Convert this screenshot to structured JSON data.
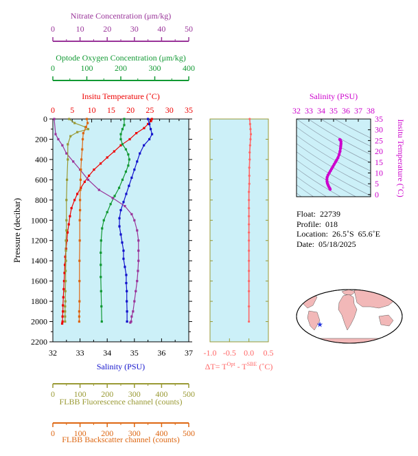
{
  "colors": {
    "nitrate": "#993399",
    "oxygen": "#119933",
    "temperature": "#ee0000",
    "salinity": "#1111cc",
    "fluorescence": "#999933",
    "backscatter": "#dd6611",
    "delta_t": "#ff6666",
    "ts_axis": "#cc00cc",
    "plot_bg": "#ccf0f8",
    "land": "#f2b8b8",
    "ocean": "#ffffff"
  },
  "float_info": {
    "float": "Float:  22739",
    "profile": "Profile:  018",
    "location": "Location:  26.5˚S  65.6˚E",
    "date": "Date:  05/18/2025"
  },
  "chart_data": [
    {
      "type": "line",
      "panel": "profiles",
      "ylabel": "Pressure (decibar)",
      "ylim": [
        2200,
        0
      ],
      "yticks": [
        0,
        200,
        400,
        600,
        800,
        1000,
        1200,
        1400,
        1600,
        1800,
        2000,
        2200
      ],
      "axes": {
        "nitrate": {
          "title": "Nitrate Concentration (μm/kg)",
          "range": [
            0,
            50
          ],
          "ticks": [
            0,
            10,
            20,
            30,
            40,
            50
          ]
        },
        "oxygen": {
          "title": "Optode Oxygen Concentration (μm/kg)",
          "range": [
            0,
            400
          ],
          "ticks": [
            0,
            100,
            200,
            300,
            400
          ]
        },
        "temperature": {
          "title": "Insitu Temperature (˚C)",
          "range": [
            0,
            35
          ],
          "ticks": [
            0,
            5,
            10,
            15,
            20,
            25,
            30,
            35
          ]
        },
        "salinity": {
          "title": "Salinity (PSU)",
          "range": [
            32,
            37
          ],
          "ticks": [
            32,
            33,
            34,
            35,
            36,
            37
          ]
        },
        "fluorescence": {
          "title": "FLBB Fluorescence channel (counts)",
          "range": [
            0,
            500
          ],
          "ticks": [
            0,
            100,
            200,
            300,
            400,
            500
          ]
        },
        "backscatter": {
          "title": "FLBB Backscatter channel (counts)",
          "range": [
            0,
            500
          ],
          "ticks": [
            0,
            100,
            200,
            300,
            400,
            500
          ]
        }
      },
      "series": [
        {
          "key": "temperature",
          "x": [
            25.5,
            25.3,
            24.5,
            23.5,
            21.5,
            19.8,
            17.5,
            15.8,
            14.0,
            12.3,
            10.6,
            9.3,
            8.2,
            7.2,
            6.3,
            5.6,
            4.8,
            4.4,
            4.1,
            3.8,
            3.6,
            3.4,
            3.2,
            3.1,
            3.0,
            2.9,
            2.8,
            2.7,
            2.6,
            2.6,
            2.5,
            2.5,
            2.4
          ],
          "y": [
            0,
            20,
            50,
            90,
            140,
            200,
            260,
            320,
            380,
            440,
            500,
            560,
            620,
            680,
            740,
            800,
            880,
            960,
            1040,
            1120,
            1200,
            1280,
            1360,
            1440,
            1520,
            1600,
            1680,
            1760,
            1840,
            1900,
            1950,
            2000,
            2020
          ]
        },
        {
          "key": "salinity",
          "x": [
            35.5,
            35.55,
            35.6,
            35.65,
            35.55,
            35.35,
            35.2,
            35.1,
            35.0,
            34.9,
            34.8,
            34.7,
            34.6,
            34.5,
            34.45,
            34.45,
            34.5,
            34.55,
            34.6,
            34.6,
            34.65,
            34.7,
            34.7,
            34.72,
            34.72,
            34.73,
            34.73
          ],
          "y": [
            0,
            50,
            100,
            150,
            200,
            260,
            340,
            420,
            500,
            580,
            660,
            740,
            820,
            900,
            980,
            1060,
            1140,
            1220,
            1300,
            1380,
            1460,
            1540,
            1620,
            1700,
            1800,
            1900,
            2000
          ]
        },
        {
          "key": "oxygen",
          "x": [
            210,
            210,
            205,
            200,
            200,
            205,
            215,
            222,
            225,
            222,
            215,
            205,
            195,
            182,
            170,
            160,
            150,
            145,
            142,
            141,
            141,
            141,
            142,
            143,
            144
          ],
          "y": [
            0,
            60,
            100,
            150,
            200,
            250,
            300,
            350,
            400,
            460,
            520,
            600,
            680,
            760,
            840,
            920,
            1000,
            1080,
            1200,
            1320,
            1440,
            1560,
            1700,
            1850,
            2000
          ]
        },
        {
          "key": "nitrate",
          "x": [
            0.5,
            1.0,
            2.0,
            3.5,
            5.0,
            7.5,
            10.0,
            13.0,
            17.0,
            22.0,
            26.5,
            29.0,
            30.0,
            31.0,
            31.5,
            31.5,
            31.5,
            31.3,
            31.0,
            30.5,
            30.0,
            29.5,
            29.0,
            28.8,
            28.5
          ],
          "y": [
            0,
            150,
            200,
            260,
            340,
            420,
            500,
            600,
            700,
            780,
            860,
            940,
            1000,
            1100,
            1200,
            1300,
            1400,
            1500,
            1600,
            1700,
            1800,
            1900,
            1950,
            2000,
            2010
          ]
        },
        {
          "key": "fluorescence",
          "x": [
            60,
            80,
            120,
            130,
            90,
            65,
            55,
            55,
            52,
            50,
            50,
            50,
            48,
            48,
            48,
            47,
            47,
            46,
            46,
            45,
            45,
            45,
            45
          ],
          "y": [
            0,
            40,
            80,
            100,
            130,
            170,
            250,
            400,
            600,
            800,
            1000,
            1100,
            1200,
            1300,
            1400,
            1500,
            1600,
            1700,
            1800,
            1850,
            1900,
            1950,
            2000
          ]
        },
        {
          "key": "backscatter",
          "x": [
            125,
            128,
            122,
            112,
            110,
            108,
            105,
            103,
            102,
            101,
            100,
            100,
            99,
            99,
            98,
            98,
            98,
            97,
            97,
            97
          ],
          "y": [
            0,
            40,
            80,
            140,
            200,
            300,
            400,
            500,
            600,
            700,
            800,
            900,
            1000,
            1200,
            1400,
            1600,
            1800,
            1900,
            1950,
            2000
          ]
        }
      ]
    },
    {
      "type": "line",
      "panel": "delta_t",
      "xlabel": "ΔT= T",
      "xlabel_sup1": "Opt",
      "xlabel_mid": " - T",
      "xlabel_sup2": "SBE",
      "xlabel_end": " (˚C)",
      "xlim": [
        -1.0,
        0.5
      ],
      "xticks": [
        "-1.0",
        "-0.5",
        "0.0",
        "0.5"
      ],
      "ylim": [
        2200,
        0
      ],
      "x": [
        0.02,
        0.03,
        0.04,
        0.05,
        0.04,
        0.03,
        0.02,
        0.02,
        0.01,
        0.01,
        0.01,
        0.0,
        0.0,
        0.0,
        0.0,
        0.0,
        0.0,
        0.0,
        0.0,
        0.0,
        0.0,
        0.0,
        0.0,
        0.0,
        0.0
      ],
      "y": [
        0,
        50,
        100,
        150,
        200,
        260,
        330,
        400,
        480,
        560,
        640,
        720,
        800,
        880,
        960,
        1040,
        1120,
        1200,
        1300,
        1400,
        1500,
        1600,
        1700,
        1850,
        2000
      ]
    },
    {
      "type": "scatter",
      "panel": "ts_diagram",
      "xlabel": "Salinity (PSU)",
      "ylabel": "Insitu Temperature (˚C)",
      "xlim": [
        32,
        38
      ],
      "ylim": [
        -1,
        35
      ],
      "xticks": [
        32,
        33,
        34,
        35,
        36,
        37,
        38
      ],
      "yticks": [
        0,
        5,
        10,
        15,
        20,
        25,
        30,
        35
      ],
      "x": [
        34.72,
        34.7,
        34.65,
        34.6,
        34.55,
        34.5,
        34.47,
        34.46,
        34.48,
        34.55,
        34.65,
        34.75,
        34.85,
        34.95,
        35.05,
        35.15,
        35.25,
        35.35,
        35.45,
        35.52,
        35.56,
        35.58,
        35.6,
        35.6,
        35.55,
        35.5
      ],
      "y": [
        2.4,
        2.8,
        3.3,
        3.8,
        4.5,
        5.2,
        6.0,
        7.0,
        8.0,
        9.0,
        10.0,
        11.0,
        12.0,
        13.0,
        14.0,
        15.0,
        16.0,
        17.0,
        18.5,
        20.0,
        21.5,
        22.5,
        23.5,
        24.5,
        25.3,
        25.5
      ]
    }
  ]
}
